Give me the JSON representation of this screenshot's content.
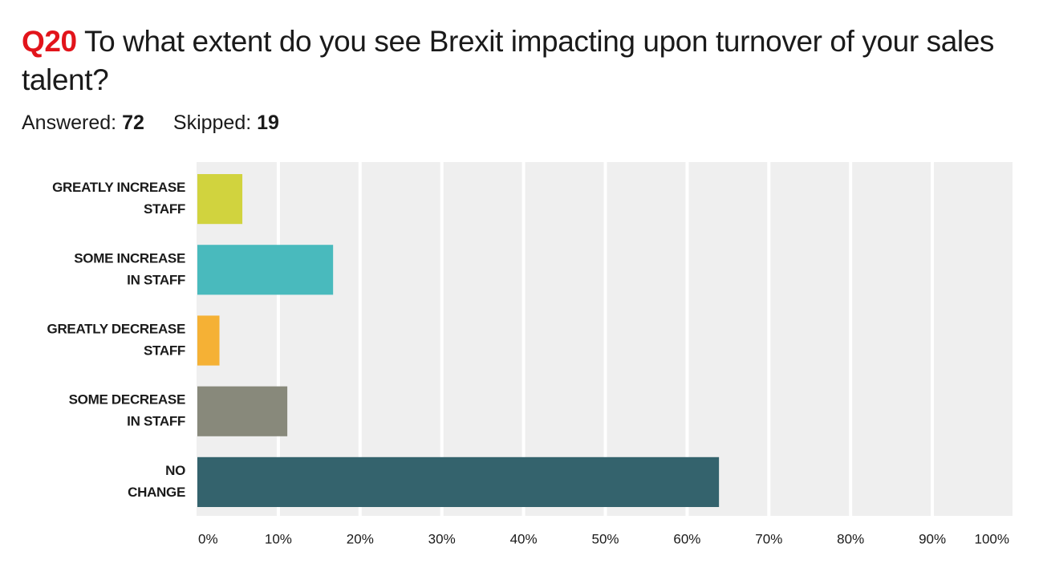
{
  "header": {
    "question_number": "Q20",
    "question_text": "To what extent do you see Brexit impacting upon turnover of your sales talent?",
    "answered_label": "Answered:",
    "answered_value": "72",
    "skipped_label": "Skipped:",
    "skipped_value": "19"
  },
  "chart_data": {
    "type": "bar",
    "orientation": "horizontal",
    "title": "",
    "xlabel": "",
    "ylabel": "",
    "categories": [
      [
        "GREATLY INCREASE",
        "STAFF"
      ],
      [
        "SOME INCREASE",
        "IN STAFF"
      ],
      [
        "GREATLY DECREASE",
        "STAFF"
      ],
      [
        "SOME DECREASE",
        "IN STAFF"
      ],
      [
        "NO",
        "CHANGE"
      ]
    ],
    "values": [
      5.6,
      16.7,
      2.8,
      11.1,
      63.9
    ],
    "colors": [
      "#d1d33e",
      "#49babd",
      "#f5b135",
      "#88897b",
      "#34636d"
    ],
    "xlim": [
      0,
      100
    ],
    "x_ticks": [
      0,
      10,
      20,
      30,
      40,
      50,
      60,
      70,
      80,
      90,
      100
    ],
    "x_tick_labels": [
      "0%",
      "10%",
      "20%",
      "30%",
      "40%",
      "50%",
      "60%",
      "70%",
      "80%",
      "90%",
      "100%"
    ],
    "grid": true,
    "plot_background": "#efefef",
    "grid_color": "#ffffff",
    "legend": "none"
  }
}
